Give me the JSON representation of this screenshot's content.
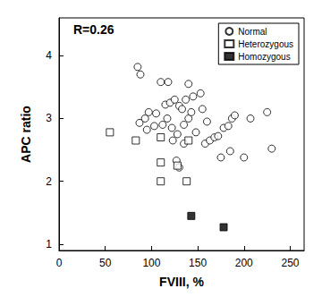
{
  "chart_data": {
    "type": "scatter",
    "x_label": "FVIII, %",
    "y_label": "APC ratio",
    "annotations": [
      "R=0.26"
    ],
    "xlim": [
      0,
      265
    ],
    "xticks": [
      0,
      50,
      100,
      150,
      200,
      250
    ],
    "ylim": [
      0.9,
      4.6
    ],
    "yticks": [
      1,
      2,
      3,
      4
    ],
    "grid": false,
    "legend": "upper right",
    "series": [
      {
        "name": "Normal",
        "color": "#000000",
        "marker": "open_circle",
        "x": [
          85,
          88,
          87,
          93,
          97,
          95,
          103,
          105,
          110,
          112,
          115,
          118,
          120,
          117,
          122,
          123,
          125,
          127,
          128,
          130,
          130,
          133,
          135,
          135,
          137,
          140,
          140,
          143,
          145,
          148,
          153,
          155,
          158,
          160,
          163,
          168,
          172,
          175,
          178,
          183,
          185,
          187,
          190,
          200,
          207,
          225,
          230
        ],
        "values": [
          3.82,
          3.7,
          2.93,
          3.0,
          3.1,
          2.82,
          2.88,
          3.08,
          3.58,
          2.9,
          3.22,
          3.58,
          3.25,
          3.0,
          2.85,
          2.65,
          3.3,
          2.33,
          2.75,
          3.2,
          2.22,
          3.15,
          2.6,
          2.9,
          3.3,
          3.55,
          3.0,
          3.1,
          3.35,
          2.78,
          3.4,
          3.15,
          2.6,
          2.95,
          2.65,
          2.7,
          2.72,
          2.38,
          2.85,
          2.88,
          2.48,
          3.0,
          3.05,
          2.38,
          3.0,
          3.1,
          2.52
        ]
      },
      {
        "name": "Heterozygous",
        "color": "#000000",
        "marker": "open_square",
        "x": [
          55,
          83,
          110,
          110,
          110,
          128,
          138,
          140
        ],
        "values": [
          2.78,
          2.65,
          2.7,
          2.3,
          2.0,
          2.25,
          2.0,
          2.65
        ]
      },
      {
        "name": "Homozygous",
        "color": "#000000",
        "marker": "filled_square",
        "x": [
          143,
          178
        ],
        "values": [
          1.45,
          1.27
        ]
      }
    ]
  }
}
